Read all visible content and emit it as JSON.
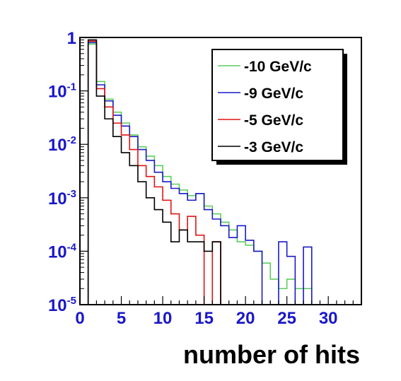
{
  "chart_data": {
    "type": "line",
    "title": "",
    "xlabel": "number of hits",
    "ylabel": "",
    "xlim": [
      0,
      34
    ],
    "ylim": [
      1e-05,
      1
    ],
    "y_scale": "log",
    "grid": false,
    "legend_position": "top-right",
    "x_ticks": [
      0,
      5,
      10,
      15,
      20,
      25,
      30
    ],
    "x_tick_labels": [
      "0",
      "5",
      "10",
      "15",
      "20",
      "25",
      "30"
    ],
    "y_ticks": [
      1e-05,
      0.0001,
      0.001,
      0.01,
      0.1,
      1
    ],
    "y_tick_labels": [
      {
        "base": "10",
        "exp": "-5"
      },
      {
        "base": "10",
        "exp": "-4"
      },
      {
        "base": "10",
        "exp": "-3"
      },
      {
        "base": "10",
        "exp": "-2"
      },
      {
        "base": "10",
        "exp": "-1"
      },
      {
        "base": "1",
        "exp": ""
      }
    ],
    "bin_edges": [
      0,
      1,
      2,
      3,
      4,
      5,
      6,
      7,
      8,
      9,
      10,
      11,
      12,
      13,
      14,
      15,
      16,
      17,
      18,
      19,
      20,
      21,
      22,
      23,
      24,
      25,
      26,
      27,
      28,
      29,
      30,
      31,
      32,
      33,
      34
    ],
    "series": [
      {
        "name": "-10 GeV/c",
        "color": "#5ccf5c",
        "values": [
          1e-05,
          0.75,
          0.15,
          0.07,
          0.04,
          0.025,
          0.015,
          0.009,
          0.006,
          0.004,
          0.0025,
          0.0018,
          0.0014,
          0.0011,
          0.0012,
          0.0007,
          0.0005,
          0.00035,
          0.00025,
          0.00015,
          0.00013,
          0.0001,
          6e-05,
          3e-05,
          2e-05,
          3e-05,
          2e-05,
          2e-05,
          1e-05,
          1e-05,
          1e-05,
          1e-05,
          1e-05,
          1e-05
        ]
      },
      {
        "name": "-9 GeV/c",
        "color": "#1a1ac8",
        "values": [
          1e-05,
          0.8,
          0.13,
          0.065,
          0.035,
          0.022,
          0.014,
          0.008,
          0.005,
          0.003,
          0.002,
          0.0015,
          0.0012,
          0.0009,
          0.0012,
          0.0006,
          0.0004,
          0.0003,
          0.00018,
          0.0003,
          0.00016,
          0.0001,
          1e-05,
          1e-05,
          0.00015,
          8e-05,
          1e-05,
          0.00012,
          1e-05,
          1e-05,
          1e-05,
          1e-05,
          1e-05,
          1e-05
        ]
      },
      {
        "name": "-5 GeV/c",
        "color": "#e01414",
        "values": [
          1e-05,
          0.85,
          0.11,
          0.05,
          0.025,
          0.015,
          0.008,
          0.004,
          0.0025,
          0.0016,
          0.0009,
          0.0005,
          0.00025,
          0.00045,
          0.0002,
          1e-05,
          0.00015,
          1e-05,
          1e-05,
          1e-05,
          1e-05,
          1e-05,
          1e-05,
          1e-05,
          1e-05,
          1e-05,
          1e-05,
          1e-05,
          1e-05,
          1e-05,
          1e-05,
          1e-05,
          1e-05,
          1e-05
        ]
      },
      {
        "name": "-3 GeV/c",
        "color": "#000000",
        "values": [
          1e-05,
          0.9,
          0.08,
          0.03,
          0.014,
          0.007,
          0.004,
          0.002,
          0.001,
          0.0006,
          0.00035,
          0.00015,
          0.00025,
          0.00015,
          0.00015,
          0.0001,
          0.00015,
          1e-05,
          1e-05,
          1e-05,
          1e-05,
          1e-05,
          1e-05,
          1e-05,
          1e-05,
          1e-05,
          1e-05,
          1e-05,
          1e-05,
          1e-05,
          1e-05,
          1e-05,
          1e-05,
          1e-05
        ]
      }
    ]
  }
}
